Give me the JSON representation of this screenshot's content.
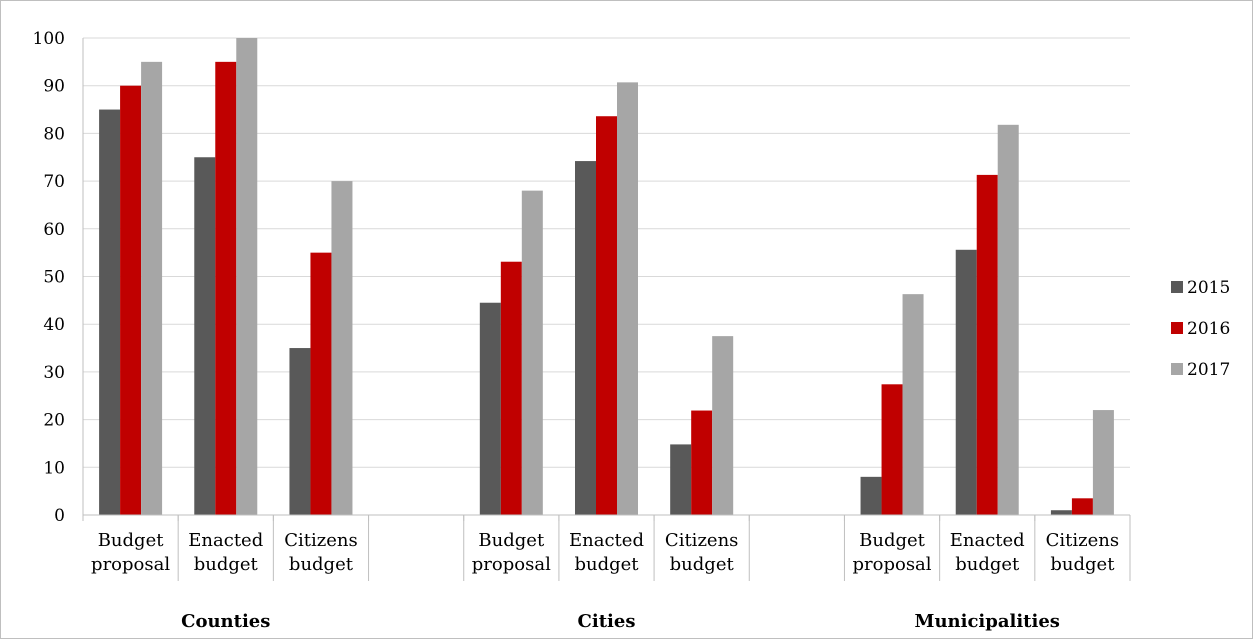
{
  "chart_data": {
    "type": "bar",
    "groups": [
      {
        "label": "Counties",
        "categories": [
          "Budget proposal",
          "Enacted budget",
          "Citizens budget"
        ]
      },
      {
        "label": "Cities",
        "categories": [
          "Budget proposal",
          "Enacted budget",
          "Citizens budget"
        ]
      },
      {
        "label": "Municipalities",
        "categories": [
          "Budget proposal",
          "Enacted budget",
          "Citizens budget"
        ]
      }
    ],
    "category_lines": [
      [
        "Budget",
        "proposal"
      ],
      [
        "Enacted",
        "budget"
      ],
      [
        "Citizens",
        "budget"
      ]
    ],
    "series": [
      {
        "name": "2015",
        "color": "#595959",
        "values": [
          85,
          75,
          35,
          44.5,
          74.2,
          14.8,
          8,
          55.6,
          1
        ]
      },
      {
        "name": "2016",
        "color": "#c00000",
        "values": [
          90,
          95,
          55,
          53.1,
          83.6,
          21.9,
          27.4,
          71.3,
          3.5
        ]
      },
      {
        "name": "2017",
        "color": "#a6a6a6",
        "values": [
          95,
          100,
          70,
          68,
          90.7,
          37.5,
          46.3,
          81.8,
          22
        ]
      }
    ],
    "ylim": [
      0,
      100
    ],
    "yticks": [
      "0",
      "10",
      "20",
      "30",
      "40",
      "50",
      "60",
      "70",
      "80",
      "90",
      "100"
    ],
    "grid": true,
    "legend_position": "right"
  }
}
